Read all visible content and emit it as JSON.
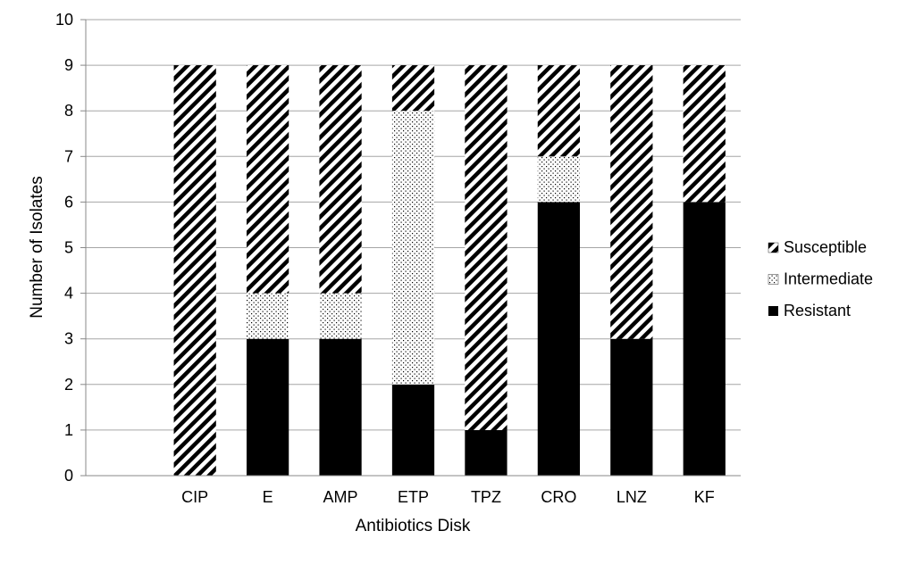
{
  "chart_data": {
    "type": "bar",
    "stacked": true,
    "title": "",
    "xlabel": "Antibiotics Disk",
    "ylabel": "Number of Isolates",
    "ylim": [
      0,
      10
    ],
    "yticks": [
      0,
      1,
      2,
      3,
      4,
      5,
      6,
      7,
      8,
      9,
      10
    ],
    "grid": true,
    "legend_position": "right",
    "categories": [
      "",
      "CIP",
      "E",
      "AMP",
      "ETP",
      "TPZ",
      "CRO",
      "LNZ",
      "KF"
    ],
    "series": [
      {
        "name": "Resistant",
        "values": [
          null,
          0,
          3,
          3,
          2,
          1,
          6,
          3,
          6
        ],
        "pattern": "solid"
      },
      {
        "name": "Intermediate",
        "values": [
          null,
          0,
          1,
          1,
          6,
          0,
          1,
          0,
          0
        ],
        "pattern": "dots"
      },
      {
        "name": "Susceptible",
        "values": [
          null,
          9,
          5,
          5,
          1,
          8,
          2,
          6,
          3
        ],
        "pattern": "diagonal"
      }
    ],
    "legend_order": [
      "Susceptible",
      "Intermediate",
      "Resistant"
    ]
  }
}
